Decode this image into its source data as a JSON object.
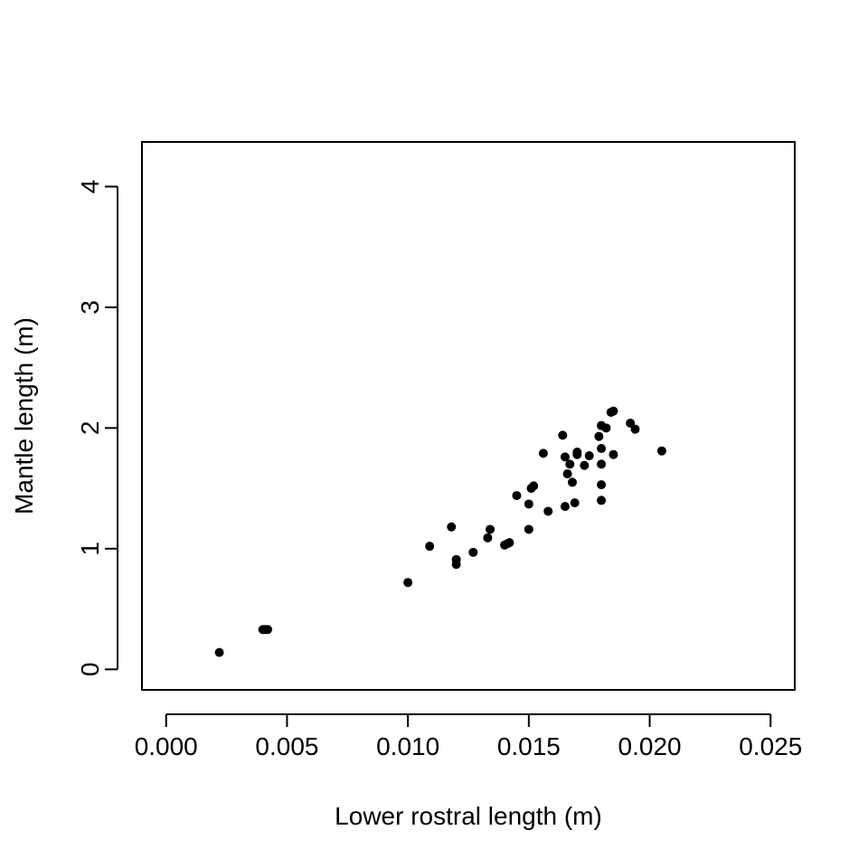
{
  "chart_data": {
    "type": "scatter",
    "title": "",
    "xlabel": "Lower rostral length (m)",
    "ylabel": "Mantle length (m)",
    "xlim": [
      -0.001,
      0.026
    ],
    "ylim": [
      -0.17,
      4.37
    ],
    "x_ticks": [
      0.0,
      0.005,
      0.01,
      0.015,
      0.02,
      0.025
    ],
    "x_tick_labels": [
      "0.000",
      "0.005",
      "0.010",
      "0.015",
      "0.020",
      "0.025"
    ],
    "y_ticks": [
      0,
      1,
      2,
      3,
      4
    ],
    "y_tick_labels": [
      "0",
      "1",
      "2",
      "3",
      "4"
    ],
    "grid": false,
    "legend": "none",
    "point_color": "#000000",
    "series": [
      {
        "x": [
          0.0022,
          0.004,
          0.0041,
          0.0042,
          0.01,
          0.0109,
          0.0118,
          0.012,
          0.012,
          0.0127,
          0.0133,
          0.0134,
          0.014,
          0.0141,
          0.0142,
          0.0145,
          0.015,
          0.015,
          0.0151,
          0.0152,
          0.0156,
          0.0158,
          0.0164,
          0.0165,
          0.0165,
          0.0166,
          0.0167,
          0.0168,
          0.0169,
          0.017,
          0.017,
          0.0173,
          0.0175,
          0.0179,
          0.018,
          0.018,
          0.018,
          0.018,
          0.018,
          0.0182,
          0.0184,
          0.0185,
          0.0185,
          0.0192,
          0.0194,
          0.0205
        ],
        "y": [
          0.14,
          0.33,
          0.33,
          0.33,
          0.72,
          1.02,
          1.18,
          0.91,
          0.87,
          0.97,
          1.09,
          1.16,
          1.03,
          1.04,
          1.05,
          1.44,
          1.37,
          1.16,
          1.5,
          1.52,
          1.79,
          1.31,
          1.94,
          1.76,
          1.35,
          1.62,
          1.7,
          1.55,
          1.38,
          1.8,
          1.78,
          1.69,
          1.77,
          1.93,
          2.02,
          1.83,
          1.7,
          1.53,
          1.4,
          2.0,
          2.13,
          2.14,
          1.78,
          2.04,
          1.99,
          1.81
        ]
      }
    ]
  }
}
